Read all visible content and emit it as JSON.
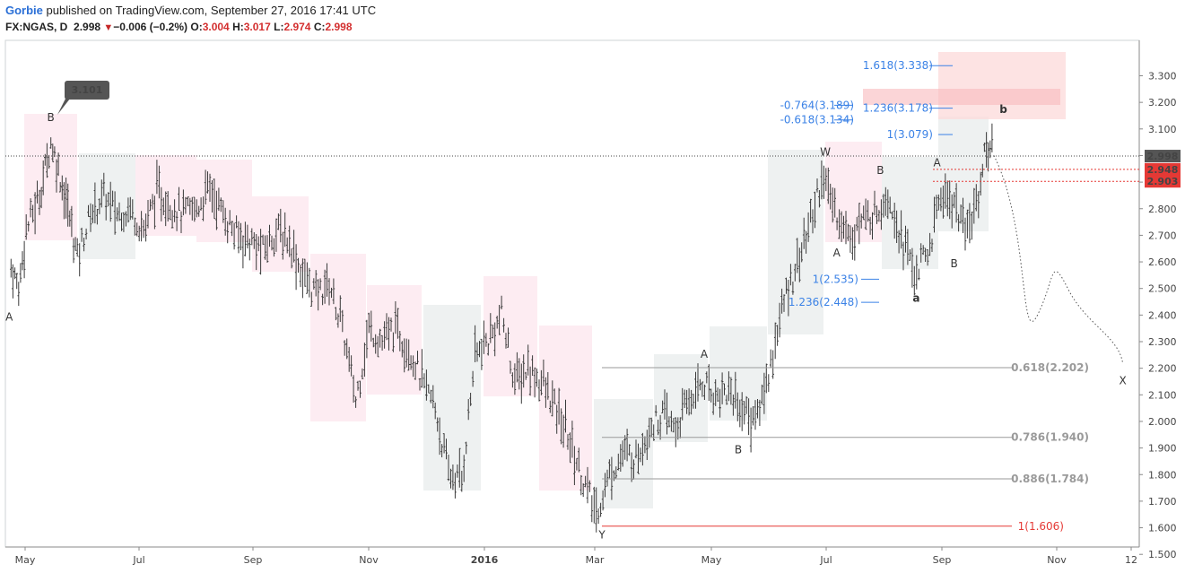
{
  "header": {
    "author": "Gorbie",
    "published": " published on TradingView.com, September 27, 2016 17:41 UTC",
    "symbol": "FX:NGAS, D",
    "last": "2.998",
    "change": "−0.006 (−0.2%)",
    "o_label": "O:",
    "o_value": "3.004",
    "h_label": "H:",
    "h_value": "3.017",
    "l_label": "L:",
    "l_value": "2.974",
    "c_label": "C:",
    "c_value": "2.998",
    "change_direction": "down"
  },
  "colors": {
    "bar": "#3a3a3a",
    "pink_box": "#fdecf2",
    "gray_box": "#eef1f1",
    "fib_blue": "#3b82e6",
    "fib_gray": "#9a9a9a",
    "red": "#e53935",
    "target_box": "#fcd9d9"
  },
  "chart_data": {
    "type": "ohlc",
    "title": "FX:NGAS, D",
    "y_range": [
      1.45,
      3.4
    ],
    "y_ticks": [
      "3.300",
      "3.200",
      "3.100",
      "3.000",
      "2.900",
      "2.800",
      "2.700",
      "2.600",
      "2.500",
      "2.400",
      "2.300",
      "2.200",
      "2.100",
      "2.000",
      "1.900",
      "1.800",
      "1.700",
      "1.600",
      "1.500"
    ],
    "x_ticks": [
      "May",
      "Jul",
      "Sep",
      "Nov",
      "2016",
      "Mar",
      "May",
      "Jul",
      "Sep",
      "Nov",
      "12"
    ],
    "last_price": "2.998",
    "price_labels": [
      "2.948",
      "2.903"
    ],
    "callout": "3.101",
    "price_path": [
      [
        "2015-04-27",
        2.58
      ],
      [
        "2015-05-01",
        2.5
      ],
      [
        "2015-05-05",
        2.72
      ],
      [
        "2015-05-12",
        2.85
      ],
      [
        "2015-05-18",
        3.05
      ],
      [
        "2015-05-22",
        2.95
      ],
      [
        "2015-05-27",
        2.8
      ],
      [
        "2015-06-01",
        2.62
      ],
      [
        "2015-06-08",
        2.78
      ],
      [
        "2015-06-15",
        2.85
      ],
      [
        "2015-06-22",
        2.78
      ],
      [
        "2015-06-29",
        2.8
      ],
      [
        "2015-07-06",
        2.72
      ],
      [
        "2015-07-13",
        2.86
      ],
      [
        "2015-07-20",
        2.82
      ],
      [
        "2015-07-27",
        2.78
      ],
      [
        "2015-08-03",
        2.8
      ],
      [
        "2015-08-10",
        2.88
      ],
      [
        "2015-08-17",
        2.78
      ],
      [
        "2015-08-24",
        2.7
      ],
      [
        "2015-08-31",
        2.68
      ],
      [
        "2015-09-07",
        2.64
      ],
      [
        "2015-09-14",
        2.72
      ],
      [
        "2015-09-21",
        2.68
      ],
      [
        "2015-09-28",
        2.55
      ],
      [
        "2015-10-05",
        2.48
      ],
      [
        "2015-10-12",
        2.52
      ],
      [
        "2015-10-19",
        2.35
      ],
      [
        "2015-10-26",
        2.08
      ],
      [
        "2015-11-02",
        2.35
      ],
      [
        "2015-11-09",
        2.3
      ],
      [
        "2015-11-16",
        2.35
      ],
      [
        "2015-11-23",
        2.28
      ],
      [
        "2015-11-30",
        2.15
      ],
      [
        "2015-12-07",
        2.05
      ],
      [
        "2015-12-14",
        1.8
      ],
      [
        "2015-12-21",
        1.78
      ],
      [
        "2015-12-28",
        2.25
      ],
      [
        "2016-01-04",
        2.3
      ],
      [
        "2016-01-11",
        2.4
      ],
      [
        "2016-01-18",
        2.15
      ],
      [
        "2016-01-25",
        2.2
      ],
      [
        "2016-02-01",
        2.15
      ],
      [
        "2016-02-08",
        2.05
      ],
      [
        "2016-02-15",
        1.95
      ],
      [
        "2016-02-22",
        1.8
      ],
      [
        "2016-03-01",
        1.65
      ],
      [
        "2016-03-08",
        1.8
      ],
      [
        "2016-03-15",
        1.88
      ],
      [
        "2016-03-22",
        1.86
      ],
      [
        "2016-03-29",
        1.98
      ],
      [
        "2016-04-05",
        2.02
      ],
      [
        "2016-04-12",
        1.97
      ],
      [
        "2016-04-19",
        2.08
      ],
      [
        "2016-04-26",
        2.15
      ],
      [
        "2016-05-03",
        2.1
      ],
      [
        "2016-05-10",
        2.12
      ],
      [
        "2016-05-17",
        2.05
      ],
      [
        "2016-05-24",
        2.0
      ],
      [
        "2016-05-31",
        2.18
      ],
      [
        "2016-06-07",
        2.42
      ],
      [
        "2016-06-14",
        2.58
      ],
      [
        "2016-06-21",
        2.72
      ],
      [
        "2016-06-28",
        2.92
      ],
      [
        "2016-07-05",
        2.8
      ],
      [
        "2016-07-12",
        2.7
      ],
      [
        "2016-07-19",
        2.75
      ],
      [
        "2016-07-26",
        2.78
      ],
      [
        "2016-08-02",
        2.86
      ],
      [
        "2016-08-09",
        2.7
      ],
      [
        "2016-08-16",
        2.56
      ],
      [
        "2016-08-23",
        2.62
      ],
      [
        "2016-08-30",
        2.86
      ],
      [
        "2016-09-06",
        2.82
      ],
      [
        "2016-09-13",
        2.7
      ],
      [
        "2016-09-20",
        2.9
      ],
      [
        "2016-09-23",
        3.05
      ],
      [
        "2016-09-27",
        2.998
      ]
    ],
    "projection": [
      [
        "2016-09-27",
        3.0
      ],
      [
        "2016-10-20",
        2.4
      ],
      [
        "2016-11-05",
        2.5
      ],
      [
        "2016-12-04",
        2.22
      ]
    ],
    "wave_labels": [
      {
        "text": "A",
        "date": "2015-04-26",
        "price": 2.38
      },
      {
        "text": "B",
        "date": "2015-05-18",
        "price": 3.13
      },
      {
        "text": "A",
        "date": "2016-04-27",
        "price": 2.24
      },
      {
        "text": "B",
        "date": "2016-05-15",
        "price": 1.88
      },
      {
        "text": "Y",
        "date": "2016-03-04",
        "price": 1.56
      },
      {
        "text": "W",
        "date": "2016-06-30",
        "price": 3.0
      },
      {
        "text": "A",
        "date": "2016-07-06",
        "price": 2.62
      },
      {
        "text": "B",
        "date": "2016-07-29",
        "price": 2.93
      },
      {
        "text": "A",
        "date": "2016-08-28",
        "price": 2.96
      },
      {
        "text": "B",
        "date": "2016-09-06",
        "price": 2.58
      },
      {
        "text": "X",
        "date": "2016-12-04",
        "price": 2.14
      }
    ],
    "wave_labels_gray": [
      {
        "text": "a",
        "date": "2016-08-17",
        "price": 2.45
      },
      {
        "text": "b",
        "date": "2016-10-02",
        "price": 3.16
      }
    ],
    "fib_blue": [
      {
        "label": "1.618(3.338)",
        "price": 3.338
      },
      {
        "label": "1.236(3.178)",
        "price": 3.178
      },
      {
        "label": "-0.764(3.189)",
        "price": 3.189
      },
      {
        "label": "-0.618(3.134)",
        "price": 3.134
      },
      {
        "label": "1(3.079)",
        "price": 3.079
      },
      {
        "label": "1(2.535)",
        "price": 2.535
      },
      {
        "label": "1.236(2.448)",
        "price": 2.448
      }
    ],
    "fib_gray": [
      {
        "label": "0.618(2.202)",
        "price": 2.202
      },
      {
        "label": "0.786(1.940)",
        "price": 1.94
      },
      {
        "label": "0.886(1.784)",
        "price": 1.784
      }
    ],
    "fib_red": {
      "label": "1(1.606)",
      "price": 1.606
    }
  }
}
